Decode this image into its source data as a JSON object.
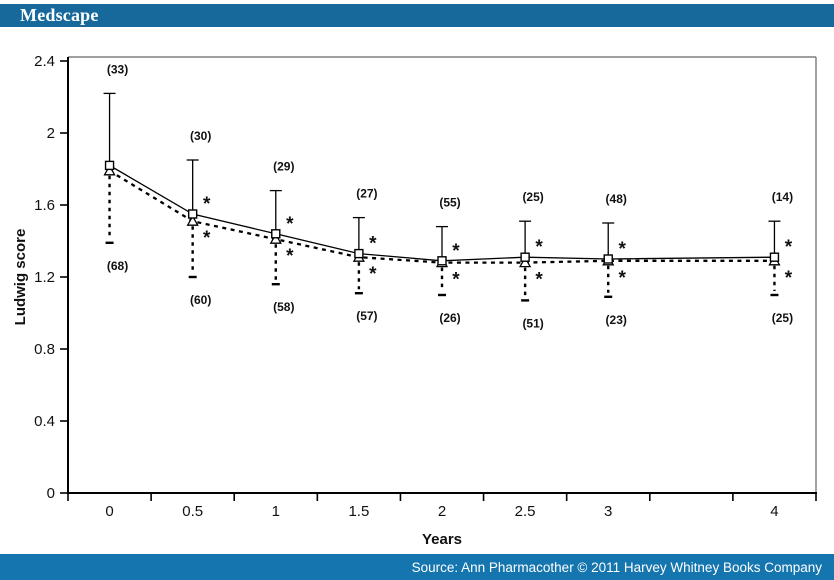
{
  "header": {
    "logo": "Medscape",
    "bg_color": "#17699c"
  },
  "footer": {
    "source": "Source: Ann Pharmacother © 2011 Harvey Whitney Books Company",
    "bg_color": "#1475af"
  },
  "colors": {
    "plot_line": "#000000",
    "frame": "#666666",
    "text": "#111111",
    "background": "#ffffff"
  },
  "chart_data": {
    "type": "line",
    "title": "",
    "xlabel": "Years",
    "ylabel": "Ludwig score",
    "x_categories": [
      "0",
      "0.5",
      "1",
      "1.5",
      "2",
      "2.5",
      "3",
      "4"
    ],
    "x_slot_of_category": [
      0,
      1,
      2,
      3,
      4,
      5,
      6,
      8
    ],
    "x_total_slots": 9,
    "ylim": [
      0,
      2.4
    ],
    "y_tick_values": [
      0,
      0.4,
      0.8,
      1.2,
      1.6,
      2,
      2.4
    ],
    "y_tick_labels": [
      "0",
      "0.4",
      "0.8",
      "1.2",
      "1.6",
      "2",
      "2.4"
    ],
    "grid": "off",
    "legend": "none",
    "series": [
      {
        "name": "solid-line-open-squares",
        "marker": "square",
        "line_style": "solid",
        "values": [
          1.82,
          1.55,
          1.44,
          1.33,
          1.29,
          1.31,
          1.3,
          1.31
        ],
        "error_upper_end": [
          2.22,
          1.85,
          1.68,
          1.53,
          1.48,
          1.51,
          1.5,
          1.51
        ]
      },
      {
        "name": "dashed-line-open-triangles",
        "marker": "triangle",
        "line_style": "dashed",
        "values": [
          1.79,
          1.51,
          1.41,
          1.31,
          1.28,
          1.28,
          1.29,
          1.29
        ],
        "error_lower_end": [
          1.39,
          1.2,
          1.16,
          1.11,
          1.1,
          1.07,
          1.09,
          1.1
        ]
      }
    ],
    "n_labels_above": [
      "(33)",
      "(30)",
      "(29)",
      "(27)",
      "(55)",
      "(25)",
      "(48)",
      "(14)"
    ],
    "n_labels_below": [
      "(68)",
      "(60)",
      "(58)",
      "(57)",
      "(26)",
      "(51)",
      "(23)",
      "(25)"
    ],
    "asterisk": "*",
    "asterisk_upper": [
      false,
      true,
      true,
      true,
      true,
      true,
      true,
      true
    ],
    "asterisk_lower": [
      false,
      true,
      true,
      true,
      true,
      true,
      true,
      true
    ]
  }
}
